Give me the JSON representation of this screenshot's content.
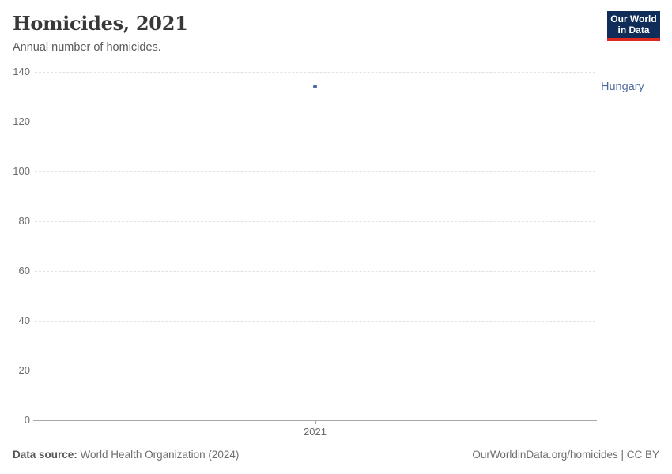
{
  "logo": {
    "line1": "Our World",
    "line2": "in Data",
    "bg": "#102d59",
    "accent": "#dc2820"
  },
  "footer": {
    "source_label": "Data source:",
    "source_value": "World Health Organization (2024)",
    "attribution": "OurWorldinData.org/homicides | CC BY"
  },
  "colors": {
    "series": "#4c6a9c",
    "grid": "#e2e2e2",
    "axis": "#a8a8a8",
    "tick_text": "#6b6b6b"
  },
  "chart_data": {
    "type": "scatter",
    "title": "Homicides, 2021",
    "subtitle": "Annual number of homicides.",
    "x": [
      2021
    ],
    "xtick_labels": [
      "2021"
    ],
    "series": [
      {
        "name": "Hungary",
        "values": [
          134
        ]
      }
    ],
    "ylim": [
      0,
      140
    ],
    "yticks": [
      0,
      20,
      40,
      60,
      80,
      100,
      120,
      140
    ],
    "grid": "horizontal-dashed",
    "legend": "entity-label-right"
  }
}
